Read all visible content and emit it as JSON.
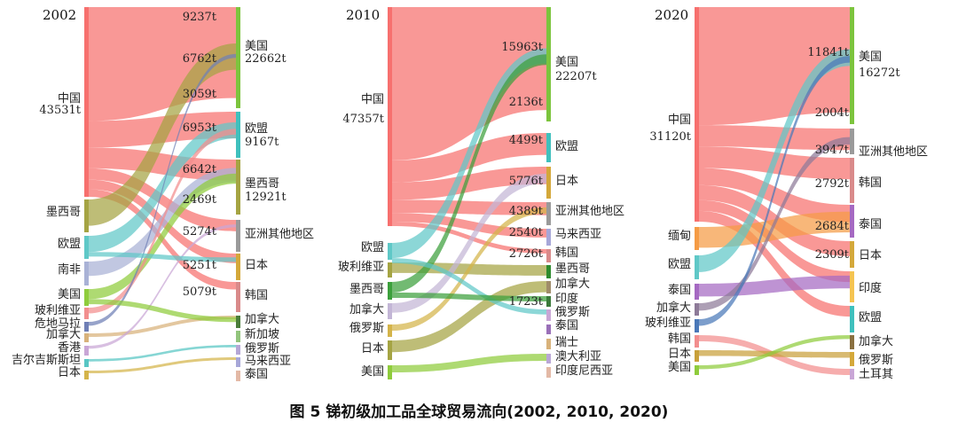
{
  "caption": "图 5  锑初级加工品全球贸易流向(2002, 2010, 2020)",
  "chart_data": [
    {
      "type": "sankey",
      "year": "2002",
      "title": "2002",
      "sources": [
        {
          "label": "中国",
          "value_label": "43531t",
          "color": "#f7706e"
        },
        {
          "label": "墨西哥",
          "color": "#a5a443"
        },
        {
          "label": "欧盟",
          "color": "#5fc8c7"
        },
        {
          "label": "南非",
          "color": "#a9b2d6"
        },
        {
          "label": "美国",
          "color": "#8fcc3c"
        },
        {
          "label": "玻利维亚",
          "color": "#f28e8e"
        },
        {
          "label": "危地马拉",
          "color": "#6f7fb6"
        },
        {
          "label": "加拿大",
          "color": "#d8b27a"
        },
        {
          "label": "香港",
          "color": "#c9a6d6"
        },
        {
          "label": "吉尔吉斯斯坦",
          "color": "#58c6c4"
        },
        {
          "label": "日本",
          "color": "#d4b44a"
        }
      ],
      "targets": [
        {
          "label": "美国",
          "value_label": "22662t",
          "color": "#7cc43d"
        },
        {
          "label": "欧盟",
          "value_label": "9167t",
          "color": "#3fc0bd"
        },
        {
          "label": "墨西哥",
          "value_label": "12921t",
          "color": "#a5a443"
        },
        {
          "label": "亚洲其他地区",
          "color": "#9a9a9a"
        },
        {
          "label": "日本",
          "color": "#d4a83a"
        },
        {
          "label": "韩国",
          "color": "#d98a8a"
        },
        {
          "label": "加拿大",
          "color": "#4a7d3a"
        },
        {
          "label": "新加坡",
          "color": "#92c47c"
        },
        {
          "label": "俄罗斯",
          "color": "#b5a7d6"
        },
        {
          "label": "马来西亚",
          "color": "#a7a7d8"
        },
        {
          "label": "泰国",
          "color": "#e3b9a6"
        }
      ],
      "flow_labels": [
        "9237t",
        "6762t",
        "3059t",
        "6953t",
        "6642t",
        "2469t",
        "5274t",
        "5251t",
        "5079t"
      ]
    },
    {
      "type": "sankey",
      "year": "2010",
      "title": "2010",
      "sources": [
        {
          "label": "中国",
          "value_label": "47357t",
          "color": "#f7706e"
        },
        {
          "label": "欧盟",
          "color": "#5fc8c7"
        },
        {
          "label": "玻利维亚",
          "color": "#a5a443"
        },
        {
          "label": "墨西哥",
          "color": "#3ca03c"
        },
        {
          "label": "加拿大",
          "color": "#c3b6d6"
        },
        {
          "label": "俄罗斯",
          "color": "#d4b44a"
        },
        {
          "label": "日本",
          "color": "#a5a443"
        },
        {
          "label": "美国",
          "color": "#8fcc3c"
        }
      ],
      "targets": [
        {
          "label": "美国",
          "value_label": "22207t",
          "color": "#7cc43d"
        },
        {
          "label": "欧盟",
          "color": "#3fc0bd"
        },
        {
          "label": "日本",
          "color": "#d4a83a"
        },
        {
          "label": "亚洲其他地区",
          "color": "#9a9a9a"
        },
        {
          "label": "马来西亚",
          "color": "#a7a7d8"
        },
        {
          "label": "韩国",
          "color": "#d98a8a"
        },
        {
          "label": "墨西哥",
          "color": "#2e8b2e"
        },
        {
          "label": "加拿大",
          "color": "#a08c6a"
        },
        {
          "label": "印度",
          "color": "#3a7a3a"
        },
        {
          "label": "俄罗斯",
          "color": "#c9a6d6"
        },
        {
          "label": "泰国",
          "color": "#9a70b8"
        },
        {
          "label": "瑞士",
          "color": "#d8b27a"
        },
        {
          "label": "澳大利亚",
          "color": "#b9a7d6"
        },
        {
          "label": "印度尼西亚",
          "color": "#e3b9a6"
        }
      ],
      "flow_labels": [
        "15963t",
        "2136t",
        "4499t",
        "5776t",
        "4389t",
        "2540t",
        "2726t",
        "1723t"
      ]
    },
    {
      "type": "sankey",
      "year": "2020",
      "title": "2020",
      "sources": [
        {
          "label": "中国",
          "value_label": "31120t",
          "color": "#f7706e"
        },
        {
          "label": "缅甸",
          "color": "#f59b45"
        },
        {
          "label": "欧盟",
          "color": "#5fc8c7"
        },
        {
          "label": "泰国",
          "color": "#a569c2"
        },
        {
          "label": "加拿大",
          "color": "#8d7a98"
        },
        {
          "label": "玻利维亚",
          "color": "#4a78b8"
        },
        {
          "label": "韩国",
          "color": "#f28e8e"
        },
        {
          "label": "日本",
          "color": "#c9a03a"
        },
        {
          "label": "美国",
          "color": "#8fcc3c"
        }
      ],
      "targets": [
        {
          "label": "美国",
          "value_label": "16272t",
          "color": "#7cc43d"
        },
        {
          "label": "亚洲其他地区",
          "color": "#9a9a9a"
        },
        {
          "label": "韩国",
          "color": "#d98a8a"
        },
        {
          "label": "泰国",
          "color": "#a569c2"
        },
        {
          "label": "日本",
          "color": "#d4a83a"
        },
        {
          "label": "印度",
          "color": "#f5c451"
        },
        {
          "label": "欧盟",
          "color": "#3fc0bd"
        },
        {
          "label": "加拿大",
          "color": "#8a7040"
        },
        {
          "label": "俄罗斯",
          "color": "#d4a83a"
        },
        {
          "label": "土耳其",
          "color": "#c9a6d6"
        }
      ],
      "flow_labels": [
        "11841t",
        "2004t",
        "3947t",
        "2792t",
        "2684t",
        "2309t"
      ]
    }
  ]
}
